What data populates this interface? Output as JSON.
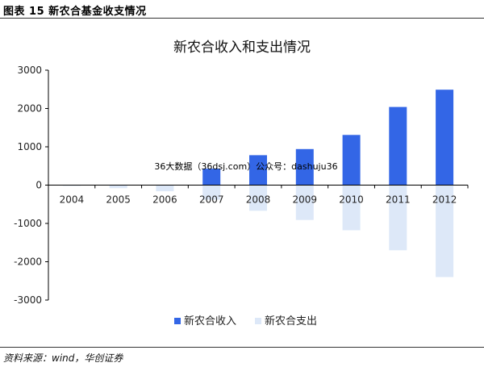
{
  "figure_label": "图表 15   新农合基金收支情况",
  "source": "资料来源：wind，华创证券",
  "watermark": "36大数据（36dsj.com）公众号：dashuju36",
  "colors": {
    "income": "#3366e6",
    "expense": "#dde8f8",
    "axis": "#000000"
  },
  "chart_data": {
    "type": "bar",
    "title": "新农合收入和支出情况",
    "xlabel": "",
    "ylabel": "",
    "categories": [
      "2004",
      "2005",
      "2006",
      "2007",
      "2008",
      "2009",
      "2010",
      "2011",
      "2012"
    ],
    "series": [
      {
        "name": "新农合收入",
        "values": [
          0,
          0,
          0,
          430,
          780,
          940,
          1310,
          2040,
          2490
        ]
      },
      {
        "name": "新农合支出",
        "values": [
          -20,
          -80,
          -160,
          -380,
          -670,
          -910,
          -1180,
          -1700,
          -2400
        ]
      }
    ],
    "ylim": [
      -3000,
      3000
    ],
    "yticks": [
      "3000",
      "2000",
      "1000",
      "0",
      "-1000",
      "-2000",
      "-3000"
    ],
    "grid": false,
    "legend": "bottom"
  }
}
